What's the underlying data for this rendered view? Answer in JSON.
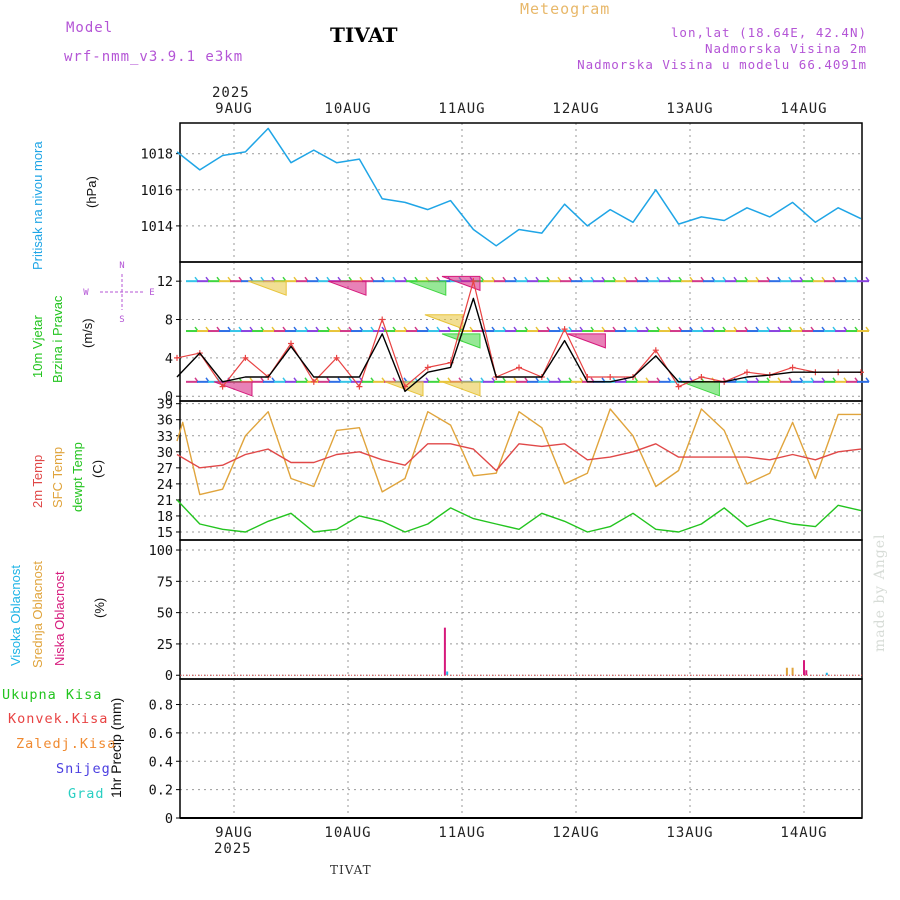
{
  "header": {
    "model_label": "Model",
    "model_name": "wrf-nmm_v3.9.1 e3km",
    "station": "TIVAT",
    "product": "Meteogram",
    "coords": "lon,lat (18.64E, 42.4N)",
    "height": "Nadmorska Visina 2m",
    "model_height": "Nadmorska Visina u modelu 66.4091m",
    "year_top": "2025",
    "year_bottom": "2025",
    "footer_station": "TIVAT",
    "credit": "made by Angel"
  },
  "colors": {
    "pressure": "#1fa5e6",
    "wind_speed": "#000000",
    "wind_gust": "#e84343",
    "temp2m": "#e04848",
    "sfc": "#e0a43c",
    "dewpt": "#23c41f",
    "cloud_high": "#1fb4e6",
    "cloud_mid": "#e0a43c",
    "cloud_low": "#d6197c",
    "precip_total": "#23c41f",
    "precip_conv": "#e84343",
    "precip_frz": "#f08a30",
    "precip_snow": "#4a3ee0",
    "precip_grad": "#29cfc2"
  },
  "left_labels": {
    "pressure": [
      "Pritisak na nivou mora",
      "(hPa)"
    ],
    "wind": [
      "10m Vjetar",
      "Brzina i Pravac",
      "(m/s)"
    ],
    "temp": [
      "2m Temp",
      "SFC Temp",
      "dewpt Temp",
      "(C)"
    ],
    "cloud": [
      "Visoka Oblacnost",
      "Srednja Oblacnost",
      "Niska Oblacnost",
      "(%)"
    ],
    "precip_legend": [
      "Ukupna Kisa",
      "Konvek.Kisa",
      "Zaledj.Kisa",
      "Snijeg",
      "Grad"
    ],
    "precip_unit": "1hr Precip (mm)",
    "compass": {
      "n": "N",
      "s": "S",
      "w": "W",
      "e": "E"
    }
  },
  "chart_data": [
    {
      "type": "line",
      "title": "Pritisak na nivou mora",
      "ylabel": "(hPa)",
      "x_days": [
        "9AUG",
        "10AUG",
        "11AUG",
        "12AUG",
        "13AUG",
        "14AUG"
      ],
      "x_range_days": [
        0.5,
        6.5
      ],
      "ylim": [
        1012,
        1019.7
      ],
      "yticks": [
        1014,
        1016,
        1018
      ],
      "series": [
        {
          "name": "MSLP",
          "x": [
            0.5,
            0.7,
            0.9,
            1.1,
            1.3,
            1.5,
            1.7,
            1.9,
            2.1,
            2.3,
            2.5,
            2.7,
            2.9,
            3.1,
            3.3,
            3.5,
            3.7,
            3.9,
            4.1,
            4.3,
            4.5,
            4.7,
            4.9,
            5.1,
            5.3,
            5.5,
            5.7,
            5.9,
            6.1,
            6.3,
            6.5
          ],
          "values": [
            1018.1,
            1017.1,
            1017.9,
            1018.1,
            1019.4,
            1017.5,
            1018.2,
            1017.5,
            1017.7,
            1015.5,
            1015.3,
            1014.9,
            1015.4,
            1013.8,
            1012.9,
            1013.8,
            1013.6,
            1015.2,
            1014.0,
            1014.9,
            1014.2,
            1016.0,
            1014.1,
            1014.5,
            1014.3,
            1015.0,
            1014.5,
            1015.3,
            1014.2,
            1015.0,
            1014.4
          ]
        }
      ]
    },
    {
      "type": "line",
      "title": "10m Vjetar Brzina i Pravac",
      "ylabel": "(m/s)",
      "ylim": [
        -0.5,
        14
      ],
      "yticks": [
        0,
        4,
        8,
        12
      ],
      "series": [
        {
          "name": "speed",
          "x": [
            0.5,
            0.7,
            0.9,
            1.1,
            1.3,
            1.5,
            1.7,
            1.9,
            2.1,
            2.3,
            2.5,
            2.7,
            2.9,
            3.1,
            3.3,
            3.5,
            3.7,
            3.9,
            4.1,
            4.3,
            4.5,
            4.7,
            4.9,
            5.1,
            5.3,
            5.5,
            5.7,
            5.9,
            6.1,
            6.3,
            6.5
          ],
          "values": [
            2.0,
            4.5,
            1.5,
            2.0,
            2.0,
            5.2,
            2.0,
            2.0,
            2.0,
            6.5,
            0.5,
            2.5,
            3.0,
            10.2,
            2.0,
            2.0,
            2.0,
            5.8,
            1.5,
            1.5,
            2.0,
            4.2,
            1.5,
            1.5,
            1.5,
            2.0,
            2.2,
            2.5,
            2.5,
            2.5,
            2.5
          ]
        },
        {
          "name": "gust",
          "x": [
            0.5,
            0.7,
            0.9,
            1.1,
            1.3,
            1.5,
            1.7,
            1.9,
            2.1,
            2.3,
            2.5,
            2.7,
            2.9,
            3.1,
            3.3,
            3.5,
            3.7,
            3.9,
            4.1,
            4.3,
            4.5,
            4.7,
            4.9,
            5.1,
            5.3,
            5.5,
            5.7,
            5.9,
            6.1,
            6.3,
            6.5
          ],
          "values": [
            4.0,
            4.5,
            1.0,
            4.0,
            2.0,
            5.5,
            1.5,
            4.0,
            1.0,
            8.0,
            1.0,
            3.0,
            3.5,
            12.0,
            2.0,
            3.0,
            2.0,
            7.0,
            2.0,
            2.0,
            2.0,
            4.8,
            1.0,
            2.0,
            1.5,
            2.5,
            2.2,
            3.0,
            2.5,
            2.5,
            2.5
          ]
        }
      ]
    },
    {
      "type": "line",
      "title": "2m Temp / SFC Temp / dewpt Temp",
      "ylabel": "(C)",
      "ylim": [
        13.5,
        39.5
      ],
      "yticks": [
        15,
        18,
        21,
        24,
        27,
        30,
        33,
        36,
        39
      ],
      "series": [
        {
          "name": "2m Temp",
          "x": [
            0.5,
            0.7,
            0.9,
            1.1,
            1.3,
            1.5,
            1.7,
            1.9,
            2.1,
            2.3,
            2.5,
            2.7,
            2.9,
            3.1,
            3.3,
            3.5,
            3.7,
            3.9,
            4.1,
            4.3,
            4.5,
            4.7,
            4.9,
            5.1,
            5.3,
            5.5,
            5.7,
            5.9,
            6.1,
            6.3,
            6.5
          ],
          "values": [
            29.5,
            27.0,
            27.5,
            29.5,
            30.5,
            28.0,
            28.0,
            29.5,
            30.0,
            28.5,
            27.5,
            31.5,
            31.5,
            30.5,
            26.5,
            31.5,
            31.0,
            31.5,
            28.5,
            29.0,
            30.0,
            31.5,
            29.0,
            29.0,
            29.0,
            29.0,
            28.5,
            29.5,
            28.5,
            30.0,
            30.5
          ]
        },
        {
          "name": "SFC Temp",
          "x": [
            0.5,
            0.55,
            0.7,
            0.9,
            1.1,
            1.3,
            1.5,
            1.7,
            1.9,
            2.1,
            2.3,
            2.5,
            2.7,
            2.9,
            3.1,
            3.3,
            3.5,
            3.7,
            3.9,
            4.1,
            4.3,
            4.5,
            4.7,
            4.9,
            5.1,
            5.3,
            5.5,
            5.7,
            5.9,
            6.1,
            6.3,
            6.5
          ],
          "values": [
            32.0,
            35.5,
            22.0,
            23.0,
            33.0,
            37.5,
            25.0,
            23.5,
            34.0,
            34.5,
            22.5,
            25.0,
            37.5,
            35.0,
            25.5,
            26.0,
            37.5,
            34.5,
            24.0,
            26.0,
            38.0,
            33.0,
            23.5,
            26.5,
            38.0,
            34.0,
            24.0,
            26.0,
            35.5,
            25.0,
            37.0,
            37.0
          ]
        },
        {
          "name": "dewpt Temp",
          "x": [
            0.5,
            0.7,
            0.9,
            1.1,
            1.3,
            1.5,
            1.7,
            1.9,
            2.1,
            2.3,
            2.5,
            2.7,
            2.9,
            3.1,
            3.3,
            3.5,
            3.7,
            3.9,
            4.1,
            4.3,
            4.5,
            4.7,
            4.9,
            5.1,
            5.3,
            5.5,
            5.7,
            5.9,
            6.1,
            6.3,
            6.5
          ],
          "values": [
            21.0,
            16.5,
            15.5,
            15.0,
            17.0,
            18.5,
            15.0,
            15.5,
            18.0,
            17.0,
            15.0,
            16.5,
            19.5,
            17.5,
            16.5,
            15.5,
            18.5,
            17.0,
            15.0,
            16.0,
            18.5,
            15.5,
            15.0,
            16.5,
            19.5,
            16.0,
            17.5,
            16.5,
            16.0,
            20.0,
            19.0
          ]
        }
      ]
    },
    {
      "type": "bar",
      "title": "Oblacnost",
      "ylabel": "(%)",
      "ylim": [
        -3,
        108
      ],
      "yticks": [
        0,
        25,
        50,
        75,
        100
      ],
      "series": [
        {
          "name": "Niska Oblacnost",
          "x": [
            2.85,
            6.0,
            6.02
          ],
          "values": [
            38,
            12,
            4
          ]
        },
        {
          "name": "Srednja Oblacnost",
          "x": [
            5.85,
            5.9
          ],
          "values": [
            6,
            6
          ]
        },
        {
          "name": "Visoka Oblacnost",
          "x": [
            2.87,
            6.2
          ],
          "values": [
            3,
            2
          ]
        }
      ]
    },
    {
      "type": "bar",
      "title": "1hr Precip",
      "ylabel": "(mm)",
      "ylim": [
        0,
        0.98
      ],
      "yticks": [
        0,
        0.2,
        0.4,
        0.6,
        0.8
      ],
      "series": [
        {
          "name": "Ukupna Kisa",
          "x": [],
          "values": []
        }
      ]
    }
  ]
}
